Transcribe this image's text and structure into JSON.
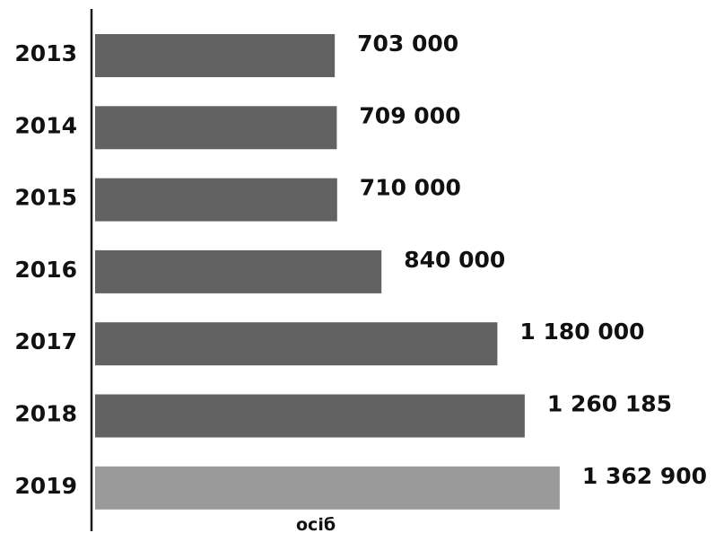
{
  "chart_data": {
    "type": "bar",
    "orientation": "horizontal",
    "categories": [
      "2013",
      "2014",
      "2015",
      "2016",
      "2017",
      "2018",
      "2019"
    ],
    "values": [
      703000,
      709000,
      710000,
      840000,
      1180000,
      1260185,
      1362900
    ],
    "value_labels": [
      "703 000",
      "709 000",
      "710 000",
      "840 000",
      "1 180 000",
      "1 260 185",
      "1 362 900"
    ],
    "unit_label": "осіб",
    "xlim": [
      0,
      1500000
    ],
    "grid": false,
    "colors": {
      "bar": "#626262",
      "highlight_bar": "#9a9a9a",
      "axis": "#1a1a1a",
      "text": "#111111"
    },
    "highlight_index": 6
  }
}
